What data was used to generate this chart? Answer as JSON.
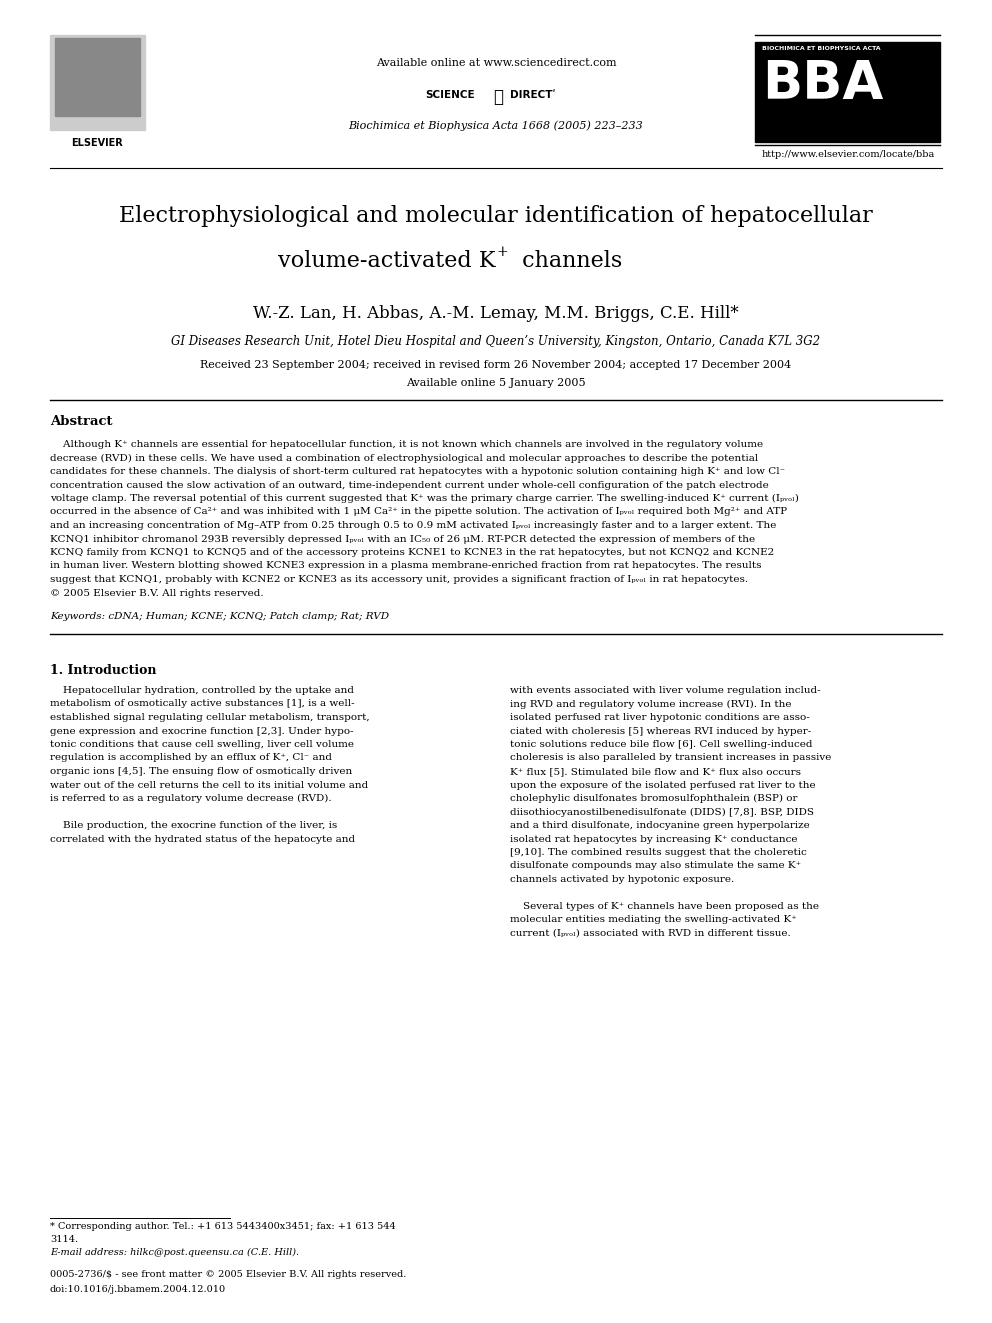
{
  "page_width": 9.92,
  "page_height": 13.23,
  "bg_color": "#ffffff",
  "header_available": "Available online at www.sciencedirect.com",
  "header_journal": "Biochimica et Biophysica Acta 1668 (2005) 223–233",
  "header_bba_url": "http://www.elsevier.com/locate/bba",
  "header_bba_title": "BIOCHIMICA ET BIOPHYSICA ACTA",
  "title_line1": "Electrophysiological and molecular identification of hepatocellular",
  "title_line2a": "volume-activated K",
  "title_line2b": "+ channels",
  "authors": "W.-Z. Lan, H. Abbas, A.-M. Lemay, M.M. Briggs, C.E. Hill*",
  "affiliation": "GI Diseases Research Unit, Hotel Dieu Hospital and Queen’s University, Kingston, Ontario, Canada K7L 3G2",
  "received": "Received 23 September 2004; received in revised form 26 November 2004; accepted 17 December 2004",
  "available": "Available online 5 January 2005",
  "abstract_title": "Abstract",
  "abstract_lines": [
    "    Although K⁺ channels are essential for hepatocellular function, it is not known which channels are involved in the regulatory volume",
    "decrease (RVD) in these cells. We have used a combination of electrophysiological and molecular approaches to describe the potential",
    "candidates for these channels. The dialysis of short-term cultured rat hepatocytes with a hypotonic solution containing high K⁺ and low Cl⁻",
    "concentration caused the slow activation of an outward, time-independent current under whole-cell configuration of the patch electrode",
    "voltage clamp. The reversal potential of this current suggested that K⁺ was the primary charge carrier. The swelling-induced K⁺ current (Iₚᵥₒₗ)",
    "occurred in the absence of Ca²⁺ and was inhibited with 1 μM Ca²⁺ in the pipette solution. The activation of Iₚᵥₒₗ required both Mg²⁺ and ATP",
    "and an increasing concentration of Mg–ATP from 0.25 through 0.5 to 0.9 mM activated Iₚᵥₒₗ increasingly faster and to a larger extent. The",
    "KCNQ1 inhibitor chromanol 293B reversibly depressed Iₚᵥₒₗ with an IC₅₀ of 26 μM. RT-PCR detected the expression of members of the",
    "KCNQ family from KCNQ1 to KCNQ5 and of the accessory proteins KCNE1 to KCNE3 in the rat hepatocytes, but not KCNQ2 and KCNE2",
    "in human liver. Western blotting showed KCNE3 expression in a plasma membrane-enriched fraction from rat hepatocytes. The results",
    "suggest that KCNQ1, probably with KCNE2 or KCNE3 as its accessory unit, provides a significant fraction of Iₚᵥₒₗ in rat hepatocytes.",
    "© 2005 Elsevier B.V. All rights reserved."
  ],
  "keywords": "Keywords: cDNA; Human; KCNE; KCNQ; Patch clamp; Rat; RVD",
  "section1_title": "1. Introduction",
  "left_col_lines": [
    "    Hepatocellular hydration, controlled by the uptake and",
    "metabolism of osmotically active substances [1], is a well-",
    "established signal regulating cellular metabolism, transport,",
    "gene expression and exocrine function [2,3]. Under hypo-",
    "tonic conditions that cause cell swelling, liver cell volume",
    "regulation is accomplished by an efflux of K⁺, Cl⁻ and",
    "organic ions [4,5]. The ensuing flow of osmotically driven",
    "water out of the cell returns the cell to its initial volume and",
    "is referred to as a regulatory volume decrease (RVD).",
    "",
    "    Bile production, the exocrine function of the liver, is",
    "correlated with the hydrated status of the hepatocyte and"
  ],
  "right_col_lines": [
    "with events associated with liver volume regulation includ-",
    "ing RVD and regulatory volume increase (RVI). In the",
    "isolated perfused rat liver hypotonic conditions are asso-",
    "ciated with choleresis [5] whereas RVI induced by hyper-",
    "tonic solutions reduce bile flow [6]. Cell swelling-induced",
    "choleresis is also paralleled by transient increases in passive",
    "K⁺ flux [5]. Stimulated bile flow and K⁺ flux also occurs",
    "upon the exposure of the isolated perfused rat liver to the",
    "cholephylic disulfonates bromosulfophthalein (BSP) or",
    "diisothiocyanostilbenedisulfonate (DIDS) [7,8]. BSP, DIDS",
    "and a third disulfonate, indocyanine green hyperpolarize",
    "isolated rat hepatocytes by increasing K⁺ conductance",
    "[9,10]. The combined results suggest that the choleretic",
    "disulfonate compounds may also stimulate the same K⁺",
    "channels activated by hypotonic exposure.",
    "",
    "    Several types of K⁺ channels have been proposed as the",
    "molecular entities mediating the swelling-activated K⁺",
    "current (Iₚᵥₒₗ) associated with RVD in different tissue."
  ],
  "footnote1": "* Corresponding author. Tel.: +1 613 5443400x3451; fax: +1 613 544",
  "footnote2": "3114.",
  "footnote3": "E-mail address: hilkc@post.queensu.ca (C.E. Hill).",
  "footer1": "0005-2736/$ - see front matter © 2005 Elsevier B.V. All rights reserved.",
  "footer2": "doi:10.1016/j.bbamem.2004.12.010"
}
